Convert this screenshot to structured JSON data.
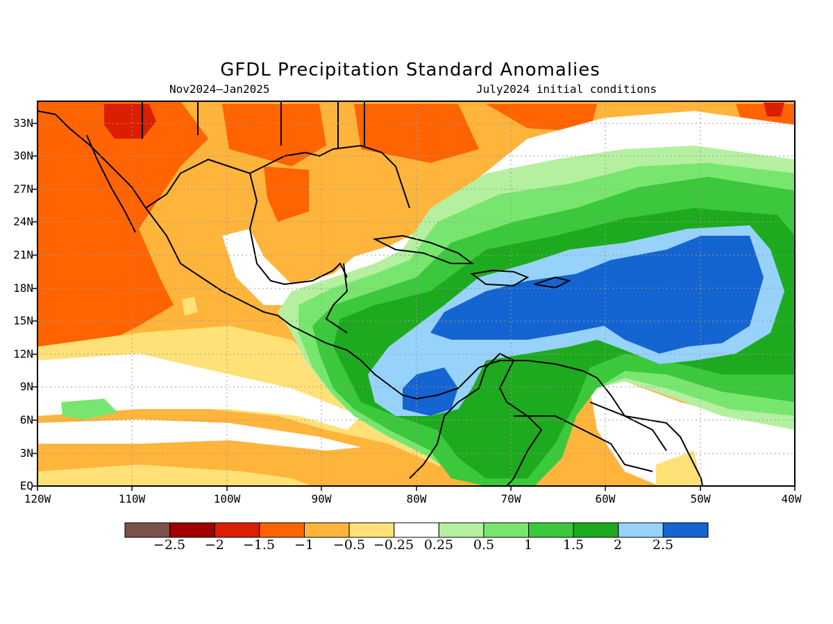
{
  "title": "GFDL Precipitation Standard Anomalies",
  "period": "Nov2024—Jan2025",
  "init_conditions": "July2024 initial conditions",
  "lat_labels": [
    "33N",
    "30N",
    "27N",
    "24N",
    "21N",
    "18N",
    "15N",
    "12N",
    "9N",
    "6N",
    "3N",
    "EQ"
  ],
  "lon_labels": [
    "120W",
    "110W",
    "100W",
    "90W",
    "80W",
    "70W",
    "60W",
    "50W",
    "40W"
  ],
  "colorbar": {
    "colors": [
      "#7a5248",
      "#a00000",
      "#dc1e00",
      "#ff6400",
      "#ffb43c",
      "#ffe178",
      "#ffffff",
      "#b4f0a0",
      "#78e66e",
      "#3cc83c",
      "#1eaa1e",
      "#96d2fa",
      "#1464d2"
    ],
    "labels": [
      "−2.5",
      "−2",
      "−1.5",
      "−1",
      "−0.5",
      "−0.25",
      "0.25",
      "0.5",
      "1",
      "1.5",
      "2",
      "2.5"
    ]
  },
  "map_data": {
    "type": "contour_map",
    "variable": "precipitation standard anomaly",
    "extent": {
      "lon": [
        -120,
        -40
      ],
      "lat": [
        0,
        35
      ]
    }
  }
}
